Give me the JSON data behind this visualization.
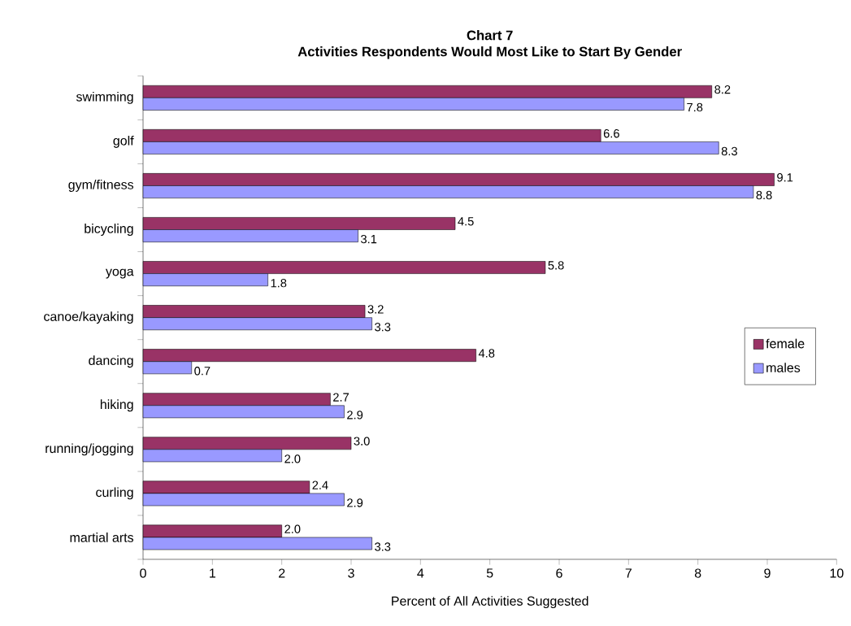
{
  "chart_data": {
    "type": "bar",
    "orientation": "horizontal",
    "title": "Chart 7",
    "subtitle": "Activities Respondents Would Most Like to Start By Gender",
    "xlabel": "Percent of All Activities Suggested",
    "categories": [
      "swimming",
      "golf",
      "gym/fitness",
      "bicycling",
      "yoga",
      "canoe/kayaking",
      "dancing",
      "hiking",
      "running/jogging",
      "curling",
      "martial arts"
    ],
    "series": [
      {
        "name": "female",
        "color": "#993366",
        "values": [
          8.2,
          6.6,
          9.1,
          4.5,
          5.8,
          3.2,
          4.8,
          2.7,
          3.0,
          2.4,
          2.0
        ],
        "value_labels": [
          "8.2",
          "6.6",
          "9.1",
          "4.5",
          "5.8",
          "3.2",
          "4.8",
          "2.7",
          "3.0",
          "2.4",
          "2.0"
        ]
      },
      {
        "name": "males",
        "color": "#9999ff",
        "values": [
          7.8,
          8.3,
          8.8,
          3.1,
          1.8,
          3.3,
          0.7,
          2.9,
          2.0,
          2.9,
          3.3
        ],
        "value_labels": [
          "7.8",
          "8.3",
          "8.8",
          "3.1",
          "1.8",
          "3.3",
          "0.7",
          "2.9",
          "2.0",
          "2.9",
          "3.3"
        ]
      }
    ],
    "xlim": [
      0,
      10
    ],
    "xticks": [
      0,
      1,
      2,
      3,
      4,
      5,
      6,
      7,
      8,
      9,
      10
    ],
    "legend": "right",
    "grid": false
  }
}
